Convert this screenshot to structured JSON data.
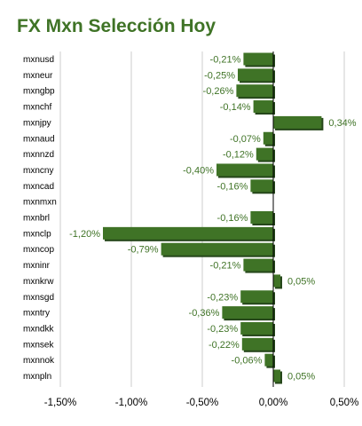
{
  "chart_data": {
    "type": "bar",
    "orientation": "horizontal",
    "title": "FX Mxn Selección Hoy",
    "categories": [
      "mxnusd",
      "mxneur",
      "mxngbp",
      "mxnchf",
      "mxnjpy",
      "mxnaud",
      "mxnnzd",
      "mxncny",
      "mxncad",
      "mxnmxn",
      "mxnbrl",
      "mxnclp",
      "mxncop",
      "mxninr",
      "mxnkrw",
      "mxnsgd",
      "mxntry",
      "mxndkk",
      "mxnsek",
      "mxnnok",
      "mxnpln"
    ],
    "values": [
      -0.21,
      -0.25,
      -0.26,
      -0.14,
      0.34,
      -0.07,
      -0.12,
      -0.4,
      -0.16,
      null,
      -0.16,
      -1.2,
      -0.79,
      -0.21,
      0.05,
      -0.23,
      -0.36,
      -0.23,
      -0.22,
      -0.06,
      0.05
    ],
    "value_labels": [
      "-0,21%",
      "-0,25%",
      "-0,26%",
      "-0,14%",
      "0,34%",
      "-0,07%",
      "-0,12%",
      "-0,40%",
      "-0,16%",
      "",
      "-0,16%",
      "-1,20%",
      "-0,79%",
      "-0,21%",
      "0,05%",
      "-0,23%",
      "-0,36%",
      "-0,23%",
      "-0,22%",
      "-0,06%",
      "0,05%"
    ],
    "xlim": [
      -1.5,
      0.5
    ],
    "x_ticks": [
      -1.5,
      -1.0,
      -0.5,
      0.0,
      0.5
    ],
    "x_tick_labels": [
      "-1,50%",
      "-1,00%",
      "-0,50%",
      "0,00%",
      "0,50%"
    ],
    "grid": true,
    "bar_color": "#3f7326",
    "bar_shadow_color": "#25461a",
    "label_color": "#3f7326",
    "title_color": "#3f7326",
    "grid_color": "#cccccc",
    "axis_color": "#000000"
  }
}
